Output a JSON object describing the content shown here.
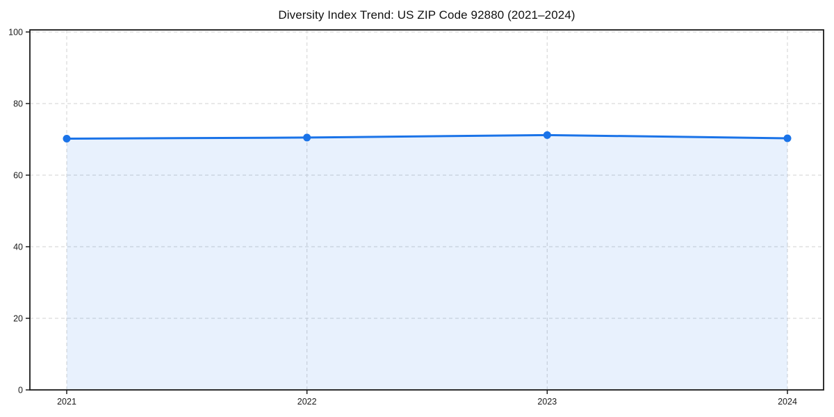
{
  "chart_data": {
    "type": "area",
    "title": "Diversity Index Trend: US ZIP Code 92880 (2021–2024)",
    "series_name": "Diversity Index",
    "categories": [
      "2021",
      "2022",
      "2023",
      "2024"
    ],
    "values": [
      70.2,
      70.5,
      71.2,
      70.3
    ],
    "xlabel": "",
    "ylabel": "",
    "ylim": [
      0,
      100
    ],
    "yticks": [
      0,
      20,
      40,
      60,
      80,
      100
    ],
    "grid": true,
    "grid_style": "dashed",
    "legend": false,
    "colors": {
      "line": "#1a73e8",
      "marker": "#1a73e8",
      "fill": "#1a73e8",
      "fill_opacity": 0.1,
      "grid": "#d9d9d9",
      "axis": "#1a1a1a",
      "tick_label": "#1a1a1a",
      "title": "#111111",
      "background": "#ffffff"
    }
  }
}
